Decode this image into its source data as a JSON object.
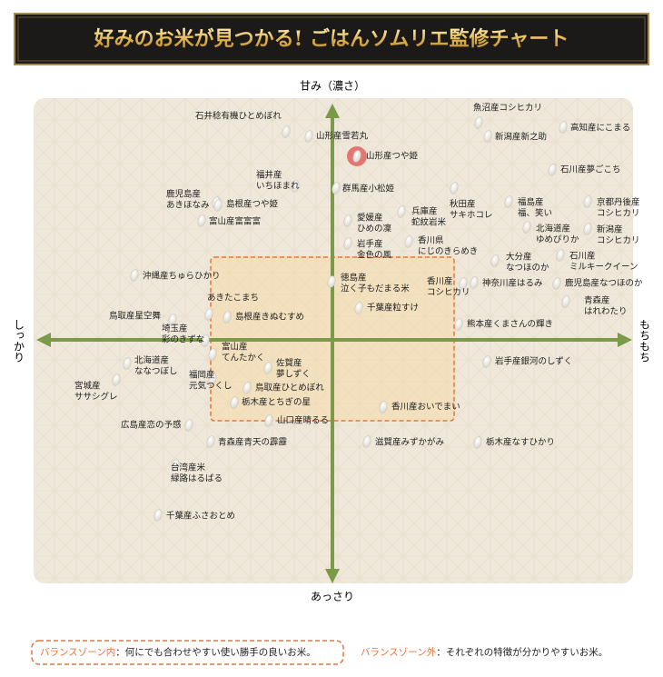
{
  "header": {
    "title": "好みのお米が見つかる! ごはんソムリエ監修チャート"
  },
  "axes": {
    "top": "甘み（濃さ）",
    "bottom": "あっさり",
    "left": "しっかり",
    "right": "もちもち"
  },
  "items": [
    {
      "lines": [
        "石井稔有機ひとめぼれ"
      ]
    },
    {
      "lines": [
        "山形産雪若丸"
      ]
    },
    {
      "lines": [
        "山形産つや姫"
      ]
    },
    {
      "lines": [
        "魚沼産コシヒカリ"
      ]
    },
    {
      "lines": [
        "新潟産新之助"
      ]
    },
    {
      "lines": [
        "高知産にこまる"
      ]
    },
    {
      "lines": [
        "石川産夢ごこち"
      ]
    },
    {
      "lines": [
        "福井産",
        "いちほまれ"
      ]
    },
    {
      "lines": [
        "鹿児島産",
        "あきほなみ"
      ]
    },
    {
      "lines": [
        "島根産つや姫"
      ]
    },
    {
      "lines": [
        "群馬産小松姫"
      ]
    },
    {
      "lines": [
        "秋田産",
        "サキホコレ"
      ]
    },
    {
      "lines": [
        "福島産",
        "福、笑い"
      ]
    },
    {
      "lines": [
        "京都丹後産",
        "コシヒカリ"
      ]
    },
    {
      "lines": [
        "富山産富富富"
      ]
    },
    {
      "lines": [
        "兵庫産",
        "蛇紋岩米"
      ]
    },
    {
      "lines": [
        "愛媛産",
        "ひめの凜"
      ]
    },
    {
      "lines": [
        "北海道産",
        "ゆめぴりか"
      ]
    },
    {
      "lines": [
        "新潟産",
        "コシヒカリ"
      ]
    },
    {
      "lines": [
        "岩手産",
        "金色の風"
      ]
    },
    {
      "lines": [
        "香川県",
        "にじのきらめき"
      ]
    },
    {
      "lines": [
        "大分産",
        "なつほのか"
      ]
    },
    {
      "lines": [
        "石川産",
        "ミルキークイーン"
      ]
    },
    {
      "lines": [
        "沖縄産ちゅらひかり"
      ]
    },
    {
      "lines": [
        "徳島産",
        "泣く子もだまる米"
      ]
    },
    {
      "lines": [
        "香川産",
        "コシヒカリ"
      ]
    },
    {
      "lines": [
        "神奈川産はるみ"
      ]
    },
    {
      "lines": [
        "鹿児島産なつほのか"
      ]
    },
    {
      "lines": [
        "青森産",
        "はれわたり"
      ]
    },
    {
      "lines": [
        "あきたこまち"
      ]
    },
    {
      "lines": [
        "島根産きぬむすめ"
      ]
    },
    {
      "lines": [
        "鳥取産星空舞"
      ]
    },
    {
      "lines": [
        "千葉産粒すけ"
      ]
    },
    {
      "lines": [
        "熊本産くまさんの輝き"
      ]
    },
    {
      "lines": [
        "埼玉産",
        "彩のきずな"
      ]
    },
    {
      "lines": [
        "富山産",
        "てんたかく"
      ]
    },
    {
      "lines": [
        "北海道産",
        "ななつぼし"
      ]
    },
    {
      "lines": [
        "岩手産銀河のしずく"
      ]
    },
    {
      "lines": [
        "佐賀産",
        "夢しずく"
      ]
    },
    {
      "lines": [
        "福岡産",
        "元気つくし"
      ]
    },
    {
      "lines": [
        "宮城産",
        "ササシグレ"
      ]
    },
    {
      "lines": [
        "鳥取産ひとめぼれ"
      ]
    },
    {
      "lines": [
        "栃木産とちぎの星"
      ]
    },
    {
      "lines": [
        "香川産おいでまい"
      ]
    },
    {
      "lines": [
        "山口産晴るる"
      ]
    },
    {
      "lines": [
        "広島産恋の予感"
      ]
    },
    {
      "lines": [
        "青森産青天の霹靂"
      ]
    },
    {
      "lines": [
        "滋賀産みずかがみ"
      ]
    },
    {
      "lines": [
        "栃木産なすひかり"
      ]
    },
    {
      "lines": [
        "台湾産米",
        "緑路はるばる"
      ]
    },
    {
      "lines": [
        "千葉産ふさおとめ"
      ]
    }
  ],
  "legend": {
    "inside_term": "バランスゾーン内",
    "inside_text": "：何にでも合わせやすい使い勝手の良いお米。",
    "outside_term": "バランスゾーン外",
    "outside_text": "：それぞれの特徴が分かりやすいお米。"
  }
}
